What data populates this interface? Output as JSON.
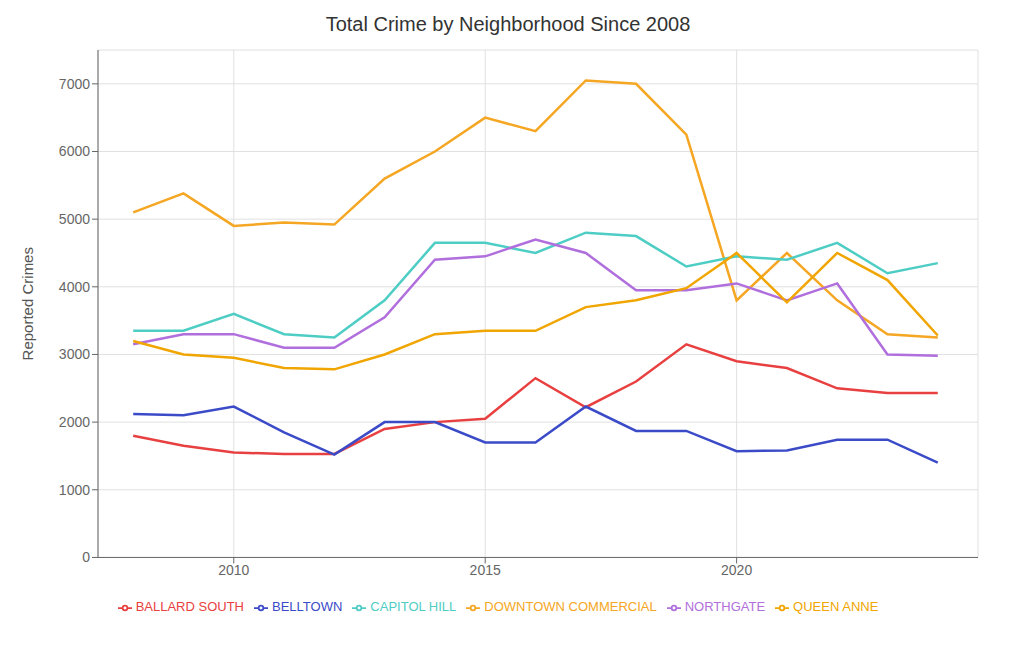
{
  "chart_data": {
    "type": "line",
    "title": "Total Crime by Neighborhood Since 2008",
    "y_label": "Reported Crimes",
    "x": [
      2008,
      2009,
      2010,
      2011,
      2012,
      2013,
      2014,
      2015,
      2016,
      2017,
      2018,
      2019,
      2020,
      2021,
      2022,
      2023,
      2024
    ],
    "xlim": [
      2007.3,
      2024.8
    ],
    "xticks": [
      2010,
      2015,
      2020
    ],
    "ylim": [
      0,
      7500
    ],
    "yticks": [
      0,
      1000,
      2000,
      3000,
      4000,
      5000,
      6000,
      7000
    ],
    "grid": true,
    "legend": "bottom",
    "series": [
      {
        "name": "DOWNTOWN COMMERCIAL",
        "color": "#f5a623",
        "values": [
          5100,
          5380,
          4900,
          4950,
          4920,
          5600,
          6000,
          6500,
          6300,
          7050,
          7000,
          6250,
          3800,
          4500,
          3800,
          3300,
          3250
        ]
      },
      {
        "name": "CAPITOL HILL",
        "color": "#4ecdc4",
        "values": [
          3350,
          3350,
          3600,
          3300,
          3250,
          3800,
          4650,
          4650,
          4500,
          4800,
          4750,
          4300,
          4450,
          4400,
          4650,
          4200,
          4350
        ]
      },
      {
        "name": "NORTHGATE",
        "color": "#b06fdc",
        "values": [
          3150,
          3300,
          3300,
          3100,
          3100,
          3550,
          4400,
          4450,
          4700,
          4500,
          3950,
          3950,
          4050,
          3800,
          4050,
          3000,
          2980
        ]
      },
      {
        "name": "QUEEN ANNE",
        "color": "#f0a500",
        "values": [
          3200,
          3000,
          2950,
          2800,
          2780,
          3000,
          3300,
          3350,
          3350,
          3700,
          3800,
          3980,
          4500,
          3770,
          4500,
          4100,
          3280
        ]
      },
      {
        "name": "BALLARD SOUTH",
        "color": "#e84040",
        "values": [
          1800,
          1650,
          1550,
          1530,
          1530,
          1900,
          2000,
          2050,
          2650,
          2220,
          2600,
          3150,
          2900,
          2800,
          2500,
          2430,
          2430
        ]
      },
      {
        "name": "BELLTOWN",
        "color": "#3b4bc8",
        "values": [
          2120,
          2100,
          2230,
          1850,
          1520,
          2000,
          2000,
          1700,
          1700,
          2230,
          1870,
          1870,
          1570,
          1580,
          1740,
          1740,
          1400
        ]
      }
    ]
  }
}
